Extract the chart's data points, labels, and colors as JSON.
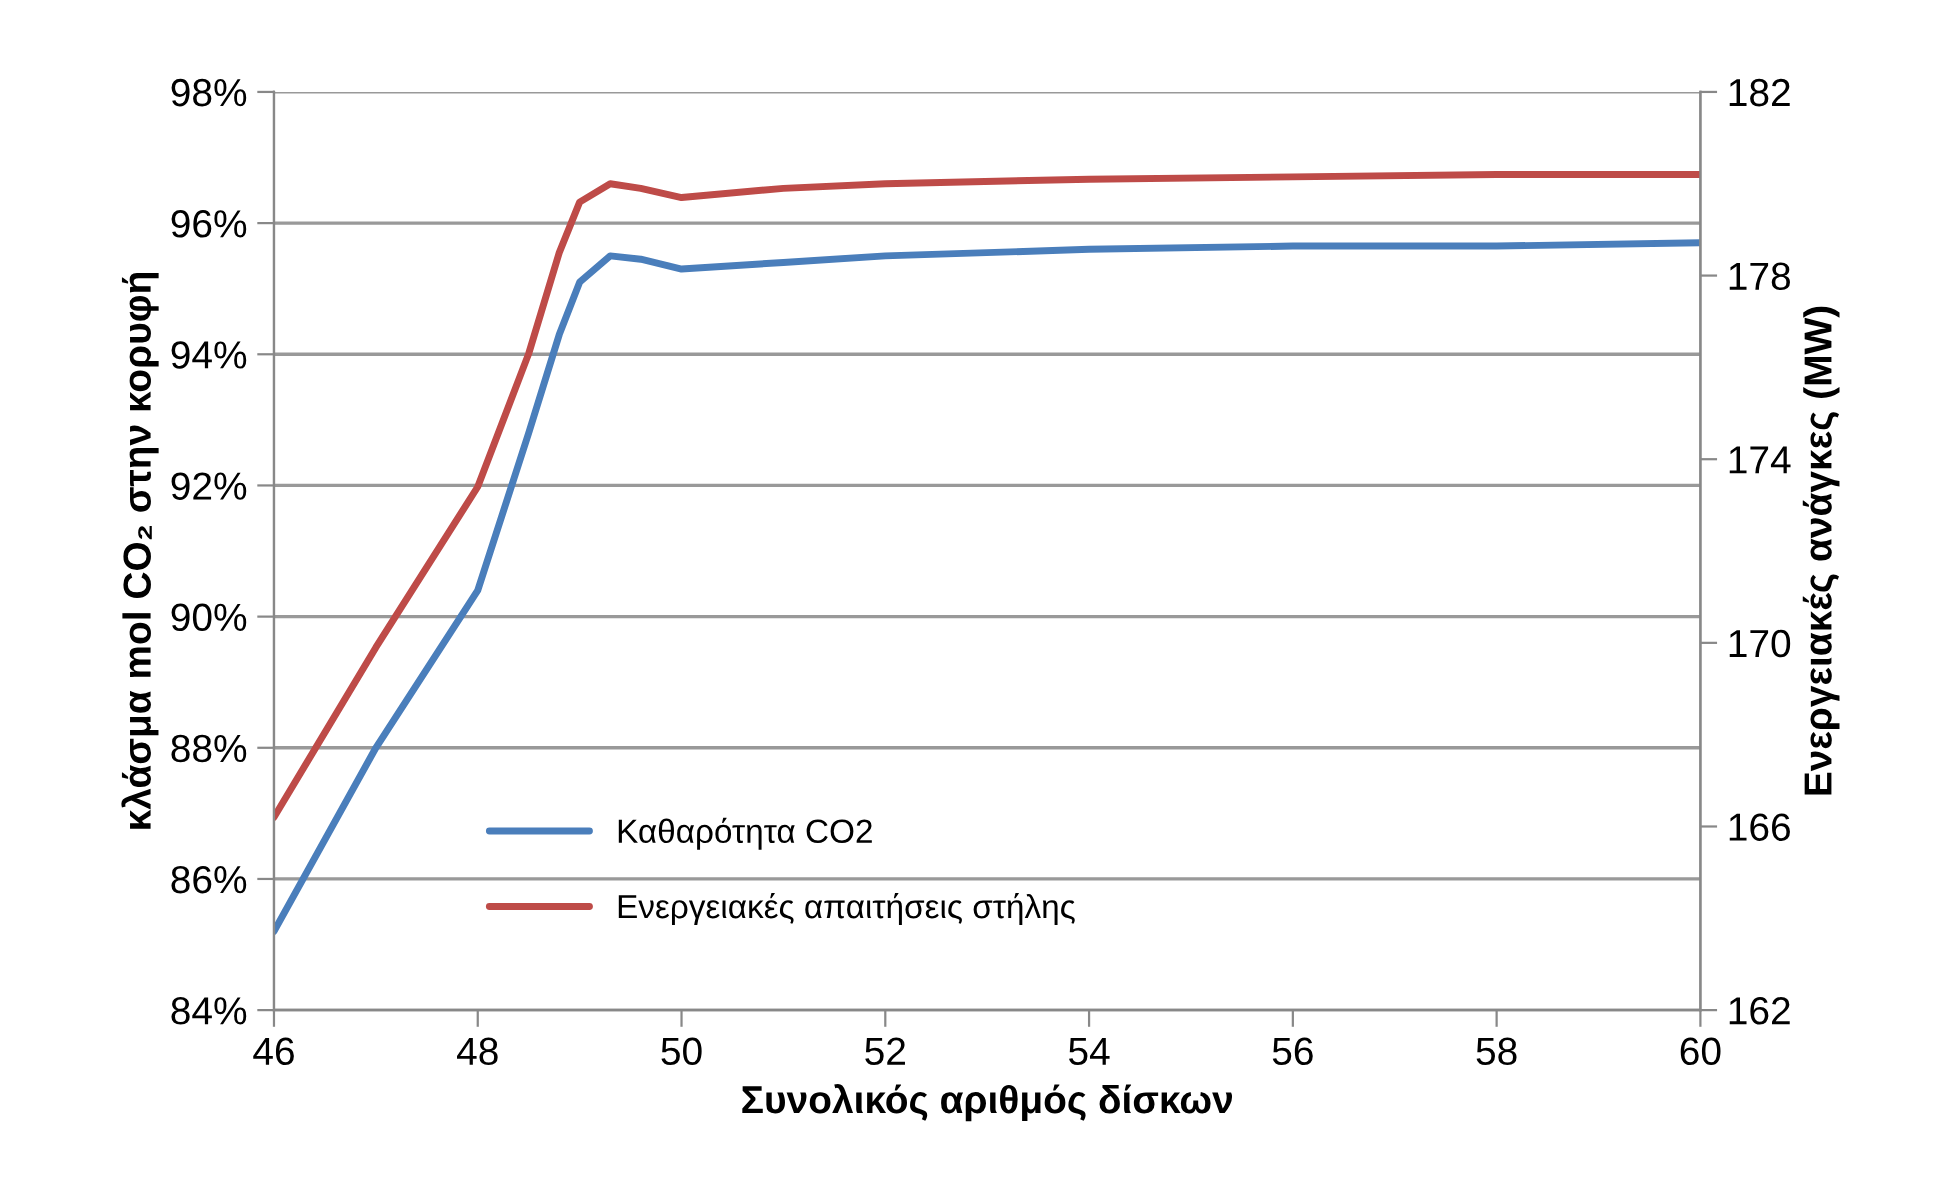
{
  "chart_data": {
    "type": "line",
    "xlabel": "Συνολικός αριθμός δίσκων",
    "ylabel": "κλάσμα mol CO₂ στην κορυφή",
    "y2label": "Ενεργειακές ανάγκες (MW)",
    "x": [
      46,
      47,
      48,
      48.5,
      48.8,
      49,
      49.3,
      49.6,
      50,
      51,
      52,
      54,
      56,
      58,
      60
    ],
    "series": [
      {
        "name": "Καθαρότητα CO2",
        "color": "#4a7ebb",
        "values": [
          85.2,
          88.0,
          90.4,
          92.8,
          94.3,
          95.1,
          95.5,
          95.45,
          95.3,
          95.4,
          95.5,
          95.6,
          95.65,
          95.65,
          95.7
        ]
      },
      {
        "name": "Ενεργειακές απαιτήσεις στήλης",
        "color": "#be4b48",
        "axis": "y2",
        "values": [
          166.2,
          169.9,
          173.4,
          176.3,
          178.5,
          179.6,
          180.0,
          179.9,
          179.7,
          179.9,
          180.0,
          180.1,
          180.15,
          180.2,
          180.2
        ]
      }
    ],
    "xlim": [
      46,
      60
    ],
    "xticks": [
      46,
      48,
      50,
      52,
      54,
      56,
      58,
      60
    ],
    "ylim": [
      84,
      98
    ],
    "yticks": [
      {
        "value": 84,
        "label": "84%"
      },
      {
        "value": 86,
        "label": "86%"
      },
      {
        "value": 88,
        "label": "88%"
      },
      {
        "value": 90,
        "label": "90%"
      },
      {
        "value": 92,
        "label": "92%"
      },
      {
        "value": 94,
        "label": "94%"
      },
      {
        "value": 96,
        "label": "96%"
      },
      {
        "value": 98,
        "label": "98%"
      }
    ],
    "y2lim": [
      162,
      182
    ],
    "y2ticks": [
      162,
      166,
      170,
      174,
      178,
      182
    ],
    "grid": "y",
    "legend": "bottom left",
    "marker": "none",
    "line_style": "solid"
  }
}
